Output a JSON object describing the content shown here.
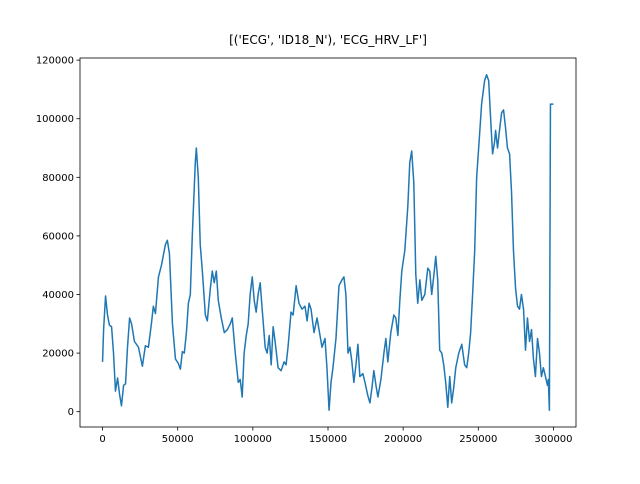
{
  "chart_data": {
    "type": "line",
    "title": "[('ECG', 'ID18_N'), 'ECG_HRV_LF']",
    "color": "#1f77b4",
    "xlim": [
      -15000,
      315000
    ],
    "ylim": [
      -5225,
      120725
    ],
    "xticks": [
      0,
      50000,
      100000,
      150000,
      200000,
      250000,
      300000
    ],
    "yticks": [
      0,
      20000,
      40000,
      60000,
      80000,
      100000,
      120000
    ],
    "x": [
      0,
      700,
      2000,
      3300,
      4600,
      6000,
      7300,
      8600,
      10000,
      11300,
      12600,
      14000,
      15300,
      16600,
      18000,
      19300,
      21200,
      23900,
      26500,
      28500,
      30500,
      32500,
      33800,
      35200,
      37200,
      39200,
      41800,
      43100,
      44500,
      46500,
      48500,
      50400,
      51800,
      53100,
      54400,
      55800,
      57100,
      58400,
      59700,
      61700,
      62400,
      63700,
      65000,
      66400,
      68400,
      69700,
      71700,
      73000,
      74300,
      75700,
      77000,
      79000,
      81000,
      83000,
      85000,
      86300,
      88300,
      90300,
      91600,
      92900,
      94200,
      95600,
      96900,
      98200,
      99600,
      100900,
      102200,
      103500,
      104900,
      106200,
      108200,
      109500,
      110900,
      112200,
      113500,
      114800,
      116800,
      118800,
      120800,
      122100,
      123400,
      125400,
      126800,
      128800,
      130700,
      132700,
      134700,
      136100,
      137400,
      138700,
      140700,
      142700,
      144700,
      146000,
      148000,
      149300,
      150700,
      152000,
      153300,
      155300,
      157300,
      159300,
      160600,
      161900,
      163300,
      164600,
      165900,
      167200,
      168600,
      169900,
      171200,
      173200,
      174600,
      176500,
      177900,
      179200,
      180500,
      181900,
      183200,
      185200,
      187200,
      188500,
      189800,
      191800,
      193800,
      195100,
      196500,
      197800,
      199100,
      201100,
      203100,
      204400,
      205700,
      207100,
      208400,
      209700,
      211100,
      212400,
      214400,
      216400,
      217700,
      219000,
      220300,
      221700,
      223000,
      224300,
      225700,
      227000,
      228300,
      229700,
      231000,
      232300,
      233600,
      235000,
      237000,
      239000,
      240900,
      242300,
      243600,
      244900,
      246200,
      247600,
      248900,
      250900,
      252200,
      254200,
      255500,
      256900,
      258200,
      259500,
      260800,
      261500,
      262800,
      264100,
      265500,
      266800,
      268100,
      269400,
      270800,
      272100,
      273400,
      274800,
      276100,
      277400,
      278700,
      280100,
      281400,
      282700,
      284100,
      285400,
      286700,
      288000,
      289400,
      290700,
      292000,
      293300,
      294700,
      296000,
      296600,
      297300,
      298000,
      300000
    ],
    "values": [
      17000,
      28000,
      39500,
      33000,
      29500,
      29000,
      20000,
      7000,
      11500,
      6000,
      2000,
      9000,
      9500,
      22000,
      32000,
      30000,
      24000,
      22000,
      15500,
      22500,
      22000,
      30000,
      36000,
      33500,
      46000,
      50000,
      57000,
      58500,
      54000,
      30000,
      18000,
      16500,
      14500,
      20500,
      20000,
      27000,
      37000,
      40000,
      60000,
      85000,
      90000,
      80000,
      57000,
      48000,
      33000,
      31000,
      42000,
      48000,
      44000,
      48000,
      38000,
      32000,
      27000,
      28000,
      30000,
      32000,
      20000,
      10000,
      11000,
      5000,
      20000,
      26000,
      30000,
      40000,
      46000,
      38000,
      34000,
      40000,
      44000,
      35000,
      22000,
      20000,
      26000,
      16000,
      29000,
      24000,
      15000,
      14000,
      17000,
      16000,
      22000,
      34000,
      33000,
      43000,
      37000,
      35000,
      36000,
      31000,
      37000,
      35000,
      27000,
      32000,
      26000,
      22000,
      25000,
      15000,
      500,
      10000,
      15000,
      25000,
      43000,
      45000,
      46000,
      40000,
      20000,
      22000,
      17000,
      10000,
      16000,
      23000,
      12000,
      13000,
      10000,
      5500,
      3000,
      8000,
      14000,
      9000,
      5000,
      11000,
      20000,
      25000,
      17000,
      27000,
      33000,
      32000,
      26000,
      38000,
      48000,
      55000,
      70000,
      85000,
      89000,
      78000,
      47000,
      37000,
      45000,
      38000,
      40000,
      49000,
      48000,
      40000,
      46000,
      53000,
      45000,
      21000,
      20000,
      16000,
      10000,
      1500,
      12000,
      3000,
      8000,
      15000,
      20000,
      23000,
      16000,
      15000,
      20000,
      27000,
      40000,
      55000,
      80000,
      95000,
      105000,
      113000,
      115000,
      113000,
      100000,
      88000,
      92000,
      96000,
      90000,
      96000,
      102000,
      103000,
      97000,
      90000,
      88000,
      75000,
      55000,
      42000,
      36000,
      35000,
      40000,
      35000,
      21000,
      32000,
      24000,
      28000,
      18000,
      12000,
      25000,
      20000,
      12000,
      15000,
      12000,
      9000,
      11000,
      500,
      105000,
      105000
    ]
  }
}
